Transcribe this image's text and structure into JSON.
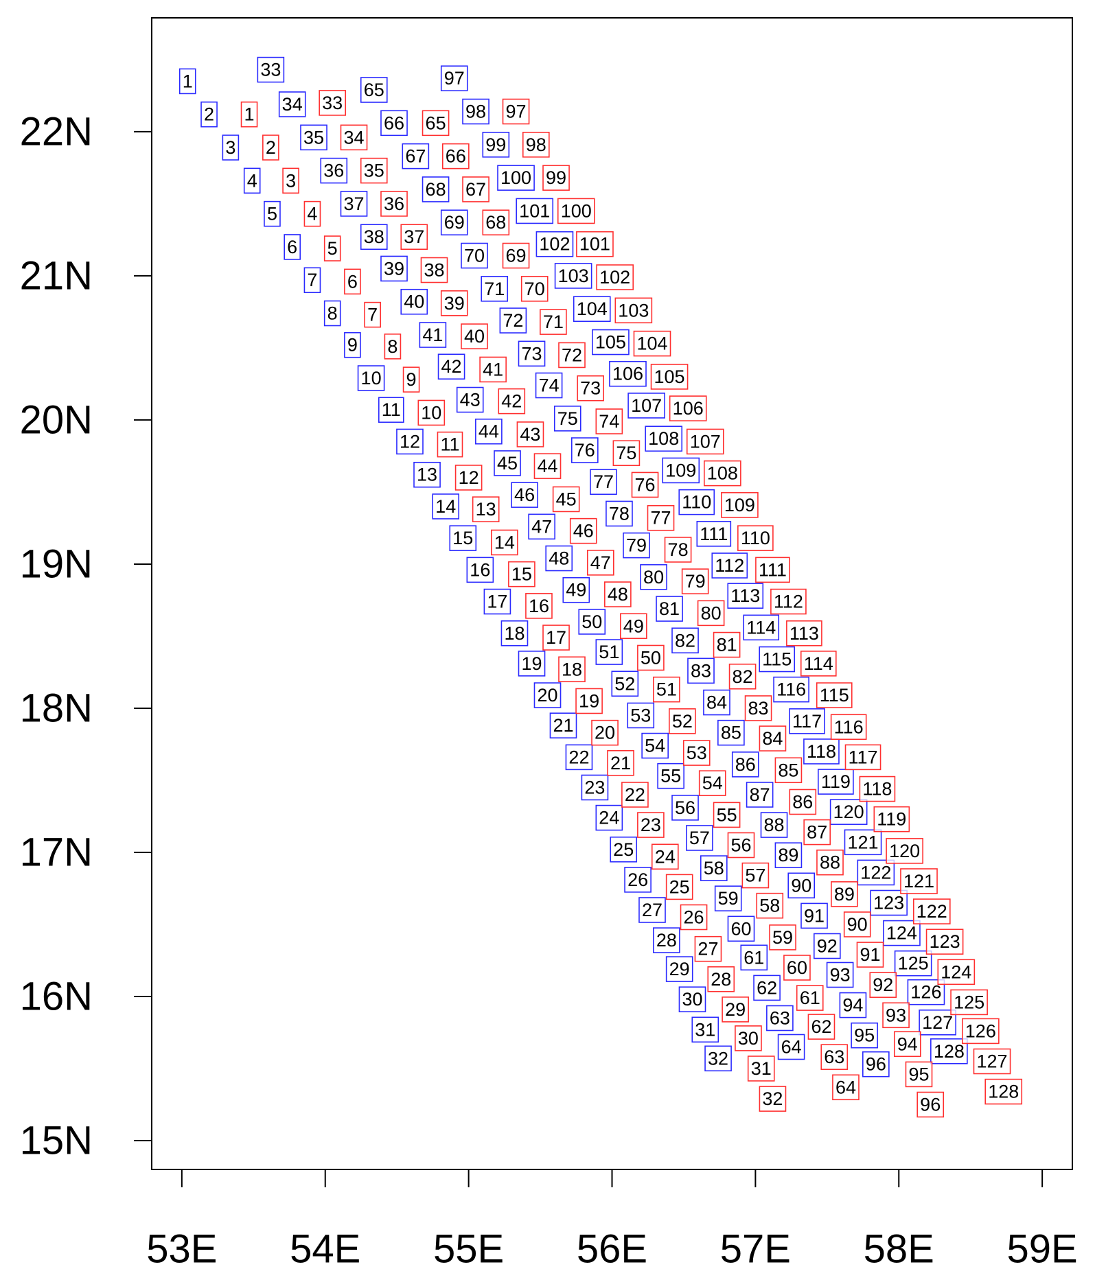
{
  "chart_data": {
    "type": "scatter",
    "xlim": [
      52.79,
      59.21
    ],
    "ylim": [
      14.8,
      22.79
    ],
    "xticks": [
      {
        "value": 53,
        "label": "53E"
      },
      {
        "value": 54,
        "label": "54E"
      },
      {
        "value": 55,
        "label": "55E"
      },
      {
        "value": 56,
        "label": "56E"
      },
      {
        "value": 57,
        "label": "57E"
      },
      {
        "value": 58,
        "label": "58E"
      },
      {
        "value": 59,
        "label": "59E"
      }
    ],
    "yticks": [
      {
        "value": 15,
        "label": "15N"
      },
      {
        "value": 16,
        "label": "16N"
      },
      {
        "value": 17,
        "label": "17N"
      },
      {
        "value": 18,
        "label": "18N"
      },
      {
        "value": 19,
        "label": "19N"
      },
      {
        "value": 20,
        "label": "20N"
      },
      {
        "value": 21,
        "label": "21N"
      },
      {
        "value": 22,
        "label": "22N"
      }
    ],
    "series": [
      {
        "color": "#2a2aff",
        "labels": [
          1,
          2,
          3,
          4,
          5,
          6,
          7,
          8,
          9,
          10,
          11,
          12,
          13,
          14,
          15,
          16,
          17,
          18,
          19,
          20,
          21,
          22,
          23,
          24,
          25,
          26,
          27,
          28,
          29,
          30,
          31,
          32,
          33,
          34,
          35,
          36,
          37,
          38,
          39,
          40,
          41,
          42,
          43,
          44,
          45,
          46,
          47,
          48,
          49,
          50,
          51,
          52,
          53,
          54,
          55,
          56,
          57,
          58,
          59,
          60,
          61,
          62,
          63,
          64,
          65,
          66,
          67,
          68,
          69,
          70,
          71,
          72,
          73,
          74,
          75,
          76,
          77,
          78,
          79,
          80,
          81,
          82,
          83,
          84,
          85,
          86,
          87,
          88,
          89,
          90,
          91,
          92,
          93,
          94,
          95,
          96,
          97,
          98,
          99,
          100,
          101,
          102,
          103,
          104,
          105,
          106,
          107,
          108,
          109,
          110,
          111,
          112,
          113,
          114,
          115,
          116,
          117,
          118,
          119,
          120,
          121,
          122,
          123,
          124,
          125,
          126,
          127,
          128
        ],
        "x": [
          53.04,
          53.19,
          53.34,
          53.49,
          53.63,
          53.77,
          53.91,
          54.05,
          54.19,
          54.32,
          54.46,
          54.59,
          54.71,
          54.84,
          54.96,
          55.08,
          55.2,
          55.32,
          55.44,
          55.55,
          55.66,
          55.77,
          55.88,
          55.98,
          56.08,
          56.18,
          56.28,
          56.38,
          56.47,
          56.56,
          56.65,
          56.74,
          53.62,
          53.77,
          53.92,
          54.06,
          54.2,
          54.34,
          54.48,
          54.62,
          54.75,
          54.88,
          55.01,
          55.14,
          55.27,
          55.39,
          55.51,
          55.63,
          55.75,
          55.86,
          55.98,
          56.09,
          56.2,
          56.3,
          56.41,
          56.51,
          56.61,
          56.71,
          56.81,
          56.9,
          56.99,
          57.08,
          57.17,
          57.25,
          54.34,
          54.48,
          54.63,
          54.77,
          54.9,
          55.04,
          55.18,
          55.31,
          55.44,
          55.56,
          55.69,
          55.81,
          55.94,
          56.05,
          56.17,
          56.29,
          56.4,
          56.51,
          56.62,
          56.73,
          56.83,
          56.93,
          57.03,
          57.13,
          57.23,
          57.32,
          57.41,
          57.5,
          57.59,
          57.68,
          57.76,
          57.84,
          54.9,
          55.05,
          55.19,
          55.33,
          55.46,
          55.6,
          55.73,
          55.86,
          55.99,
          56.11,
          56.24,
          56.36,
          56.48,
          56.59,
          56.71,
          56.82,
          56.93,
          57.04,
          57.15,
          57.25,
          57.36,
          57.46,
          57.56,
          57.65,
          57.75,
          57.84,
          57.93,
          58.02,
          58.1,
          58.19,
          58.27,
          58.35
        ],
        "y": [
          22.35,
          22.12,
          21.89,
          21.66,
          21.43,
          21.2,
          20.97,
          20.74,
          20.52,
          20.29,
          20.07,
          19.85,
          19.62,
          19.4,
          19.18,
          18.96,
          18.74,
          18.52,
          18.31,
          18.09,
          17.88,
          17.66,
          17.45,
          17.24,
          17.02,
          16.81,
          16.6,
          16.39,
          16.19,
          15.98,
          15.77,
          15.57,
          22.43,
          22.19,
          21.96,
          21.73,
          21.5,
          21.27,
          21.05,
          20.82,
          20.59,
          20.37,
          20.14,
          19.92,
          19.7,
          19.48,
          19.26,
          19.04,
          18.82,
          18.6,
          18.39,
          18.17,
          17.95,
          17.74,
          17.53,
          17.31,
          17.1,
          16.89,
          16.68,
          16.47,
          16.27,
          16.06,
          15.85,
          15.65,
          22.29,
          22.06,
          21.83,
          21.6,
          21.37,
          21.14,
          20.91,
          20.69,
          20.46,
          20.24,
          20.01,
          19.79,
          19.57,
          19.35,
          19.13,
          18.91,
          18.69,
          18.47,
          18.26,
          18.04,
          17.83,
          17.61,
          17.4,
          17.19,
          16.98,
          16.77,
          16.56,
          16.35,
          16.15,
          15.94,
          15.73,
          15.53,
          22.37,
          22.14,
          21.91,
          21.68,
          21.45,
          21.22,
          21.0,
          20.77,
          20.54,
          20.32,
          20.1,
          19.87,
          19.65,
          19.43,
          19.21,
          18.99,
          18.78,
          18.56,
          18.34,
          18.13,
          17.91,
          17.7,
          17.49,
          17.28,
          17.07,
          16.86,
          16.65,
          16.44,
          16.23,
          16.03,
          15.82,
          15.62
        ]
      },
      {
        "color": "#ff3030",
        "labels": [
          1,
          2,
          3,
          4,
          5,
          6,
          7,
          8,
          9,
          10,
          11,
          12,
          13,
          14,
          15,
          16,
          17,
          18,
          19,
          20,
          21,
          22,
          23,
          24,
          25,
          26,
          27,
          28,
          29,
          30,
          31,
          32,
          33,
          34,
          35,
          36,
          37,
          38,
          39,
          40,
          41,
          42,
          43,
          44,
          45,
          46,
          47,
          48,
          49,
          50,
          51,
          52,
          53,
          54,
          55,
          56,
          57,
          58,
          59,
          60,
          61,
          62,
          63,
          64,
          65,
          66,
          67,
          68,
          69,
          70,
          71,
          72,
          73,
          74,
          75,
          76,
          77,
          78,
          79,
          80,
          81,
          82,
          83,
          84,
          85,
          86,
          87,
          88,
          89,
          90,
          91,
          92,
          93,
          94,
          95,
          96,
          97,
          98,
          99,
          100,
          101,
          102,
          103,
          104,
          105,
          106,
          107,
          108,
          109,
          110,
          111,
          112,
          113,
          114,
          115,
          116,
          117,
          118,
          119,
          120,
          121,
          122,
          123,
          124,
          125,
          126,
          127,
          128
        ],
        "x": [
          53.47,
          53.62,
          53.76,
          53.91,
          54.05,
          54.19,
          54.33,
          54.47,
          54.6,
          54.74,
          54.87,
          55.0,
          55.12,
          55.25,
          55.37,
          55.49,
          55.61,
          55.72,
          55.84,
          55.95,
          56.06,
          56.16,
          56.27,
          56.37,
          56.47,
          56.57,
          56.67,
          56.76,
          56.86,
          56.95,
          57.04,
          57.12,
          54.05,
          54.2,
          54.34,
          54.48,
          54.62,
          54.76,
          54.9,
          55.04,
          55.17,
          55.3,
          55.43,
          55.55,
          55.68,
          55.8,
          55.92,
          56.04,
          56.15,
          56.27,
          56.38,
          56.49,
          56.59,
          56.7,
          56.8,
          56.9,
          57.0,
          57.1,
          57.19,
          57.29,
          57.38,
          57.46,
          57.55,
          57.63,
          54.77,
          54.91,
          55.05,
          55.19,
          55.33,
          55.46,
          55.59,
          55.72,
          55.85,
          55.98,
          56.1,
          56.23,
          56.34,
          56.46,
          56.58,
          56.69,
          56.8,
          56.91,
          57.02,
          57.12,
          57.23,
          57.33,
          57.43,
          57.52,
          57.62,
          57.71,
          57.8,
          57.89,
          57.98,
          58.06,
          58.14,
          58.22,
          55.33,
          55.47,
          55.61,
          55.75,
          55.88,
          56.02,
          56.15,
          56.28,
          56.4,
          56.53,
          56.65,
          56.77,
          56.89,
          57.0,
          57.12,
          57.23,
          57.34,
          57.44,
          57.55,
          57.65,
          57.75,
          57.85,
          57.95,
          58.04,
          58.14,
          58.23,
          58.32,
          58.4,
          58.49,
          58.57,
          58.65,
          58.73
        ],
        "y": [
          22.12,
          21.89,
          21.66,
          21.43,
          21.19,
          20.96,
          20.73,
          20.51,
          20.28,
          20.05,
          19.83,
          19.6,
          19.38,
          19.15,
          18.93,
          18.71,
          18.49,
          18.27,
          18.05,
          17.83,
          17.62,
          17.4,
          17.19,
          16.97,
          16.76,
          16.55,
          16.33,
          16.12,
          15.91,
          15.71,
          15.5,
          15.29,
          22.2,
          21.96,
          21.73,
          21.5,
          21.27,
          21.04,
          20.81,
          20.58,
          20.35,
          20.13,
          19.9,
          19.68,
          19.45,
          19.23,
          19.01,
          18.79,
          18.57,
          18.35,
          18.13,
          17.91,
          17.69,
          17.48,
          17.26,
          17.05,
          16.84,
          16.63,
          16.41,
          16.2,
          15.99,
          15.79,
          15.58,
          15.37,
          22.06,
          21.83,
          21.6,
          21.37,
          21.14,
          20.91,
          20.68,
          20.45,
          20.22,
          19.99,
          19.77,
          19.55,
          19.32,
          19.1,
          18.88,
          18.66,
          18.44,
          18.22,
          18.0,
          17.79,
          17.57,
          17.35,
          17.14,
          16.93,
          16.71,
          16.5,
          16.29,
          16.08,
          15.87,
          15.67,
          15.46,
          15.25,
          22.14,
          21.91,
          21.68,
          21.45,
          21.22,
          20.99,
          20.76,
          20.53,
          20.3,
          20.08,
          19.85,
          19.63,
          19.41,
          19.18,
          18.96,
          18.74,
          18.52,
          18.31,
          18.09,
          17.87,
          17.66,
          17.44,
          17.23,
          17.01,
          16.8,
          16.59,
          16.38,
          16.17,
          15.96,
          15.76,
          15.55,
          15.34
        ]
      }
    ]
  }
}
